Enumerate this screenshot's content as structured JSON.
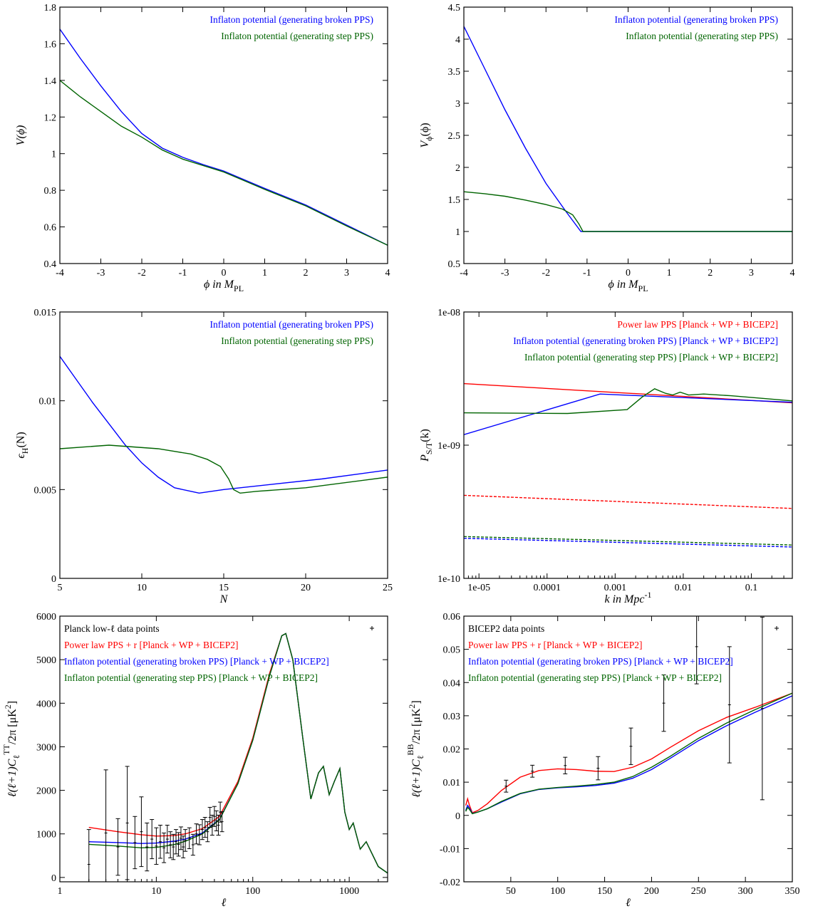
{
  "colors": {
    "red": "#ff0000",
    "blue": "#0000ff",
    "green": "#006400",
    "black": "#000000"
  },
  "chart_data": [
    {
      "type": "line",
      "xlabel": {
        "main": "ϕ in M",
        "sub": "PL"
      },
      "ylabel": {
        "main": "V(ϕ)",
        "sub": ""
      },
      "xlim": [
        -4,
        4
      ],
      "ylim": [
        0.4,
        1.8
      ],
      "xticks": [
        -4,
        -3,
        -2,
        -1,
        0,
        1,
        2,
        3,
        4
      ],
      "xticklabels": [
        "-4",
        "-3",
        "-2",
        "-1",
        "0",
        "1",
        "2",
        "3",
        "4"
      ],
      "yticks": [
        0.4,
        0.6,
        0.8,
        1.0,
        1.2,
        1.4,
        1.6,
        1.8
      ],
      "yticklabels": [
        "0.4",
        "0.6",
        "0.8",
        "1",
        "1.2",
        "1.4",
        "1.6",
        "1.8"
      ],
      "legend": "top-right",
      "series": [
        {
          "name": "Inflaton potential (generating broken PPS)",
          "color": "#0000ff",
          "dash": false,
          "x": [
            -4,
            -3.5,
            -3,
            -2.5,
            -2,
            -1.5,
            -1,
            -0.5,
            0,
            1,
            2,
            3,
            4
          ],
          "y": [
            1.68,
            1.52,
            1.37,
            1.23,
            1.11,
            1.03,
            0.98,
            0.94,
            0.905,
            0.81,
            0.72,
            0.61,
            0.5
          ]
        },
        {
          "name": "Inflaton potential (generating step PPS)",
          "color": "#006400",
          "dash": false,
          "x": [
            -4,
            -3.5,
            -3,
            -2.5,
            -2,
            -1.5,
            -1,
            -0.5,
            0,
            1,
            2,
            3,
            4
          ],
          "y": [
            1.4,
            1.31,
            1.23,
            1.15,
            1.09,
            1.02,
            0.97,
            0.935,
            0.9,
            0.805,
            0.715,
            0.605,
            0.5
          ]
        }
      ]
    },
    {
      "type": "line",
      "xlabel": {
        "main": "ϕ in M",
        "sub": "PL"
      },
      "ylabel": {
        "main": "V",
        "sub": "ϕ",
        "tail": "(ϕ)"
      },
      "xlim": [
        -4,
        4
      ],
      "ylim": [
        0.5,
        4.5
      ],
      "xticks": [
        -4,
        -3,
        -2,
        -1,
        0,
        1,
        2,
        3,
        4
      ],
      "xticklabels": [
        "-4",
        "-3",
        "-2",
        "-1",
        "0",
        "1",
        "2",
        "3",
        "4"
      ],
      "yticks": [
        0.5,
        1,
        1.5,
        2,
        2.5,
        3,
        3.5,
        4,
        4.5
      ],
      "yticklabels": [
        "0.5",
        "1",
        "1.5",
        "2",
        "2.5",
        "3",
        "3.5",
        "4",
        "4.5"
      ],
      "legend": "top-right",
      "series": [
        {
          "name": "Inflaton potential (generating broken PPS)",
          "color": "#0000ff",
          "dash": false,
          "x": [
            -4,
            -3.5,
            -3,
            -2.5,
            -2,
            -1.5,
            -1.15,
            -1,
            0,
            4
          ],
          "y": [
            4.2,
            3.55,
            2.9,
            2.3,
            1.75,
            1.3,
            1.0,
            1.0,
            1.0,
            1.0
          ]
        },
        {
          "name": "Inflaton potential (generating step PPS)",
          "color": "#006400",
          "dash": false,
          "x": [
            -4,
            -3.5,
            -3,
            -2.5,
            -2,
            -1.6,
            -1.35,
            -1.2,
            -1.1,
            -1,
            0,
            4
          ],
          "y": [
            1.62,
            1.59,
            1.55,
            1.49,
            1.42,
            1.35,
            1.26,
            1.12,
            1.0,
            1.0,
            1.0,
            1.0
          ]
        }
      ]
    },
    {
      "type": "line",
      "xlabel": {
        "main": "N",
        "sub": ""
      },
      "ylabel": {
        "main": "ϵ",
        "sub": "H",
        "tail": "(N)"
      },
      "xlim": [
        5,
        25
      ],
      "ylim": [
        0,
        0.015
      ],
      "xticks": [
        5,
        10,
        15,
        20,
        25
      ],
      "xticklabels": [
        "5",
        "10",
        "15",
        "20",
        "25"
      ],
      "yticks": [
        0,
        0.005,
        0.01,
        0.015
      ],
      "yticklabels": [
        "0",
        "0.005",
        "0.01",
        "0.015"
      ],
      "legend": "top-right",
      "series": [
        {
          "name": "Inflaton potential (generating broken PPS)",
          "color": "#0000ff",
          "dash": false,
          "x": [
            5,
            6,
            7,
            8,
            9,
            10,
            11,
            12,
            13,
            13.5,
            15,
            18,
            21,
            25
          ],
          "y": [
            0.0125,
            0.0112,
            0.0099,
            0.0087,
            0.0075,
            0.0065,
            0.0057,
            0.0051,
            0.0049,
            0.0048,
            0.005,
            0.0053,
            0.0056,
            0.0061
          ]
        },
        {
          "name": "Inflaton potential (generating step PPS)",
          "color": "#006400",
          "dash": false,
          "x": [
            5,
            8,
            11,
            13,
            14,
            14.8,
            15.3,
            15.6,
            16,
            17,
            20,
            25
          ],
          "y": [
            0.0073,
            0.0075,
            0.0073,
            0.007,
            0.0067,
            0.0063,
            0.0056,
            0.005,
            0.0048,
            0.0049,
            0.0051,
            0.0057
          ]
        }
      ]
    },
    {
      "type": "line",
      "xscale": "log",
      "yscale": "log",
      "xlabel": {
        "main": "k in Mpc",
        "sup": "-1"
      },
      "ylabel": {
        "main": "P",
        "sub": "S/T",
        "tail": "(k)"
      },
      "xlim": [
        6e-06,
        0.4
      ],
      "ylim": [
        1e-10,
        1e-08
      ],
      "xticks": [
        1e-05,
        0.0001,
        0.001,
        0.01,
        0.1
      ],
      "xticklabels": [
        "1e-05",
        "0.0001",
        "0.001",
        "0.01",
        "0.1"
      ],
      "yticks": [
        1e-10,
        1e-09,
        1e-08
      ],
      "yticklabels": [
        "1e-10",
        "1e-09",
        "1e-08"
      ],
      "legend": "top-right",
      "series": [
        {
          "name": "Power law PPS [Planck + WP + BICEP2]",
          "color": "#ff0000",
          "dash": false,
          "x": [
            6e-06,
            0.4
          ],
          "y": [
            2.9e-09,
            2.08e-09
          ]
        },
        {
          "name": "Inflaton potential (generating broken PPS) [Planck + WP + BICEP2]",
          "color": "#0000ff",
          "dash": false,
          "x": [
            6e-06,
            0.0006,
            0.4
          ],
          "y": [
            1.2e-09,
            2.42e-09,
            2.1e-09
          ]
        },
        {
          "name": "Inflaton potential (generating step PPS) [Planck + WP + BICEP2]",
          "color": "#006400",
          "dash": false,
          "x": [
            6e-06,
            0.0002,
            0.0015,
            0.0025,
            0.0038,
            0.0055,
            0.007,
            0.009,
            0.012,
            0.02,
            0.05,
            0.4
          ],
          "y": [
            1.75e-09,
            1.73e-09,
            1.85e-09,
            2.3e-09,
            2.65e-09,
            2.45e-09,
            2.38e-09,
            2.5e-09,
            2.38e-09,
            2.42e-09,
            2.35e-09,
            2.15e-09
          ]
        },
        {
          "color": "#ff0000",
          "dash": true,
          "x": [
            6e-06,
            0.4
          ],
          "y": [
            4.2e-10,
            3.35e-10
          ]
        },
        {
          "color": "#006400",
          "dash": true,
          "x": [
            6e-06,
            0.4
          ],
          "y": [
            2.06e-10,
            1.78e-10
          ]
        },
        {
          "color": "#0000ff",
          "dash": true,
          "x": [
            6e-06,
            0.4
          ],
          "y": [
            2e-10,
            1.72e-10
          ]
        }
      ]
    },
    {
      "type": "line",
      "xscale": "log",
      "xlabel": {
        "main": "ℓ",
        "sub": ""
      },
      "ylabel": {
        "main": "ℓ(ℓ+1)C",
        "sub": "ℓ",
        "sup": "TT",
        "tail": "/2π [μK",
        "sup2": "2",
        "tail2": "]"
      },
      "xlim": [
        1,
        2500
      ],
      "ylim": [
        -100,
        6000
      ],
      "xticks": [
        1,
        10,
        100,
        1000
      ],
      "xticklabels": [
        "1",
        "10",
        "100",
        "1000"
      ],
      "yticks": [
        0,
        1000,
        2000,
        3000,
        4000,
        5000,
        6000
      ],
      "yticklabels": [
        "0",
        "1000",
        "2000",
        "3000",
        "4000",
        "5000",
        "6000"
      ],
      "legend": "top-left",
      "points": {
        "name": "Planck low-ℓ data points",
        "color": "#000000",
        "x": [
          2,
          3,
          4,
          5,
          6,
          7,
          8,
          9,
          10,
          11,
          12,
          13,
          14,
          15,
          16,
          17,
          18,
          19,
          20,
          22,
          24,
          26,
          28,
          30,
          32,
          34,
          36,
          38,
          40,
          42,
          44,
          46,
          48
        ],
        "y": [
          300,
          1020,
          700,
          1250,
          800,
          1050,
          700,
          880,
          720,
          820,
          680,
          880,
          750,
          700,
          820,
          760,
          900,
          700,
          850,
          900,
          750,
          1000,
          980,
          1100,
          1150,
          1050,
          1380,
          1200,
          1400,
          1300,
          1200,
          1500,
          1280
        ],
        "err": [
          800,
          1450,
          650,
          1300,
          600,
          800,
          550,
          450,
          420,
          380,
          340,
          320,
          300,
          290,
          280,
          270,
          260,
          250,
          250,
          240,
          240,
          230,
          230,
          230,
          230,
          230,
          230,
          230,
          230,
          230,
          230,
          230,
          230
        ]
      },
      "series": [
        {
          "name": "Power law PPS + r [Planck + WP + BICEP2]",
          "color": "#ff0000",
          "dash": false,
          "x": [
            2,
            4,
            7,
            10,
            15,
            20,
            30,
            45,
            70,
            100,
            150,
            200,
            220,
            260,
            330,
            400,
            480,
            540,
            620,
            700,
            800,
            900,
            1000,
            1100,
            1300,
            1500,
            2000,
            2500
          ],
          "y": [
            1150,
            1050,
            980,
            950,
            960,
            1000,
            1120,
            1400,
            2200,
            3200,
            4700,
            5550,
            5600,
            5000,
            3200,
            1800,
            2400,
            2550,
            1900,
            2200,
            2500,
            1500,
            1100,
            1250,
            650,
            820,
            250,
            100
          ]
        },
        {
          "name": "Inflaton potential (generating broken PPS) [Planck + WP + BICEP2]",
          "color": "#0000ff",
          "dash": false,
          "x": [
            2,
            4,
            7,
            10,
            15,
            20,
            30,
            45,
            70,
            100,
            150,
            200,
            220,
            260,
            330,
            400,
            480,
            540,
            620,
            700,
            800,
            900,
            1000,
            1100,
            1300,
            1500,
            2000,
            2500
          ],
          "y": [
            820,
            800,
            780,
            790,
            830,
            880,
            1020,
            1330,
            2150,
            3150,
            4650,
            5550,
            5600,
            5000,
            3200,
            1800,
            2400,
            2550,
            1900,
            2200,
            2500,
            1500,
            1100,
            1250,
            650,
            820,
            250,
            100
          ]
        },
        {
          "name": "Inflaton potential (generating step PPS) [Planck + WP + BICEP2]",
          "color": "#006400",
          "dash": false,
          "x": [
            2,
            4,
            7,
            10,
            15,
            20,
            30,
            45,
            70,
            100,
            150,
            200,
            220,
            260,
            330,
            400,
            480,
            540,
            620,
            700,
            800,
            900,
            1000,
            1100,
            1300,
            1500,
            2000,
            2500
          ],
          "y": [
            760,
            720,
            680,
            690,
            750,
            830,
            1000,
            1320,
            2150,
            3150,
            4650,
            5550,
            5600,
            5000,
            3200,
            1800,
            2400,
            2550,
            1900,
            2200,
            2500,
            1500,
            1100,
            1250,
            650,
            820,
            250,
            100
          ]
        }
      ]
    },
    {
      "type": "line",
      "xlabel": {
        "main": "ℓ",
        "sub": ""
      },
      "ylabel": {
        "main": "ℓ(ℓ+1)C",
        "sub": "ℓ",
        "sup": "BB",
        "tail": "/2π [μK",
        "sup2": "2",
        "tail2": "]"
      },
      "xlim": [
        0,
        350
      ],
      "ylim": [
        -0.02,
        0.06
      ],
      "xticks": [
        50,
        100,
        150,
        200,
        250,
        300,
        350
      ],
      "xticklabels": [
        "50",
        "100",
        "150",
        "200",
        "250",
        "300",
        "350"
      ],
      "yticks": [
        -0.02,
        -0.01,
        0,
        0.01,
        0.02,
        0.03,
        0.04,
        0.05,
        0.06
      ],
      "yticklabels": [
        "-0.02",
        "-0.01",
        "0",
        "0.01",
        "0.02",
        "0.03",
        "0.04",
        "0.05",
        "0.06"
      ],
      "legend": "top-left",
      "points": {
        "name": "BICEP2 data points",
        "color": "#000000",
        "x": [
          45,
          73,
          108,
          143,
          178,
          213,
          248,
          283,
          318
        ],
        "y": [
          0.0088,
          0.0133,
          0.015,
          0.0142,
          0.0208,
          0.0338,
          0.0508,
          0.0333,
          0.0322
        ],
        "err": [
          0.0018,
          0.0018,
          0.0025,
          0.0035,
          0.0055,
          0.0085,
          0.0112,
          0.0175,
          0.0275
        ]
      },
      "series": [
        {
          "name": "Power law PPS + r [Planck + WP + BICEP2]",
          "color": "#ff0000",
          "dash": false,
          "x": [
            2,
            4,
            6,
            9,
            15,
            25,
            40,
            60,
            80,
            100,
            120,
            140,
            160,
            180,
            200,
            220,
            250,
            280,
            310,
            350
          ],
          "y": [
            0.003,
            0.005,
            0.003,
            0.0008,
            0.0015,
            0.0035,
            0.0075,
            0.0115,
            0.0135,
            0.014,
            0.0138,
            0.0133,
            0.0132,
            0.0145,
            0.017,
            0.0205,
            0.0255,
            0.0295,
            0.0325,
            0.0368
          ]
        },
        {
          "name": "Inflaton potential (generating broken PPS) [Planck + WP + BICEP2]",
          "color": "#0000ff",
          "dash": false,
          "x": [
            2,
            4,
            6,
            9,
            15,
            25,
            40,
            60,
            80,
            100,
            120,
            140,
            160,
            180,
            200,
            220,
            250,
            280,
            310,
            350
          ],
          "y": [
            0.0015,
            0.003,
            0.0022,
            0.0006,
            0.001,
            0.002,
            0.004,
            0.0065,
            0.0078,
            0.0083,
            0.0086,
            0.009,
            0.0097,
            0.0112,
            0.0138,
            0.0172,
            0.0225,
            0.027,
            0.031,
            0.036
          ]
        },
        {
          "name": "Inflaton potential (generating step PPS) [Planck + WP + BICEP2]",
          "color": "#006400",
          "dash": false,
          "x": [
            2,
            4,
            6,
            9,
            15,
            25,
            40,
            60,
            80,
            100,
            120,
            140,
            160,
            180,
            200,
            220,
            250,
            280,
            310,
            350
          ],
          "y": [
            0.0012,
            0.0024,
            0.0018,
            0.0005,
            0.001,
            0.002,
            0.0042,
            0.0066,
            0.0079,
            0.0084,
            0.0088,
            0.0093,
            0.01,
            0.0117,
            0.0145,
            0.0178,
            0.0232,
            0.0278,
            0.0318,
            0.0368
          ]
        }
      ]
    }
  ]
}
